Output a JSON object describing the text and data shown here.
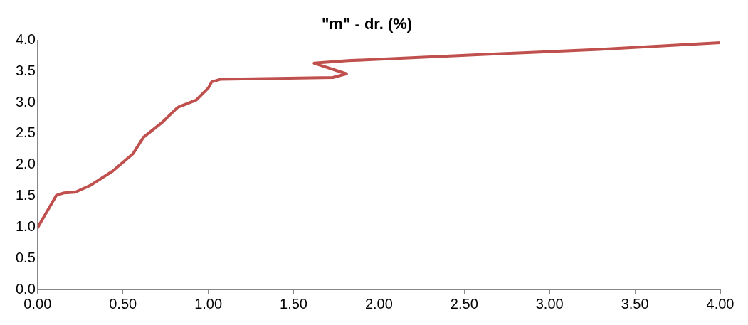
{
  "chart_data": {
    "type": "line",
    "title": "\"m\" - dr. (%)",
    "series": [
      {
        "color": "#c0504d",
        "x": [
          0,
          0.11,
          0.156,
          0.22,
          0.31,
          0.44,
          0.56,
          0.62,
          0.73,
          0.82,
          0.93,
          1.0,
          1.02,
          1.07,
          1.73,
          1.81,
          1.62,
          1.82,
          2.62,
          3.29,
          4.0
        ],
        "values": [
          0.99,
          1.51,
          1.55,
          1.56,
          1.67,
          1.9,
          2.18,
          2.44,
          2.68,
          2.92,
          3.04,
          3.23,
          3.33,
          3.37,
          3.4,
          3.46,
          3.63,
          3.67,
          3.77,
          3.85,
          3.96
        ]
      }
    ],
    "xlim": [
      0,
      4
    ],
    "xticks": [
      {
        "value": 0,
        "label": "0.00"
      },
      {
        "value": 0.5,
        "label": "0.50"
      },
      {
        "value": 1,
        "label": "1.00"
      },
      {
        "value": 1.5,
        "label": "1.50"
      },
      {
        "value": 2,
        "label": "2.00"
      },
      {
        "value": 2.5,
        "label": "2.50"
      },
      {
        "value": 3,
        "label": "3.00"
      },
      {
        "value": 3.5,
        "label": "3.50"
      },
      {
        "value": 4,
        "label": "4.00"
      }
    ],
    "ylim": [
      0,
      4
    ],
    "yticks": [
      {
        "value": 0,
        "label": "0.0"
      },
      {
        "value": 0.5,
        "label": "0.5"
      },
      {
        "value": 1,
        "label": "1.0"
      },
      {
        "value": 1.5,
        "label": "1.5"
      },
      {
        "value": 2,
        "label": "2.0"
      },
      {
        "value": 2.5,
        "label": "2.5"
      },
      {
        "value": 3,
        "label": "3.0"
      },
      {
        "value": 3.5,
        "label": "3.5"
      },
      {
        "value": 4,
        "label": "4.0"
      }
    ],
    "grid": false,
    "legend": false,
    "marker": "none",
    "line_style": "solid"
  }
}
